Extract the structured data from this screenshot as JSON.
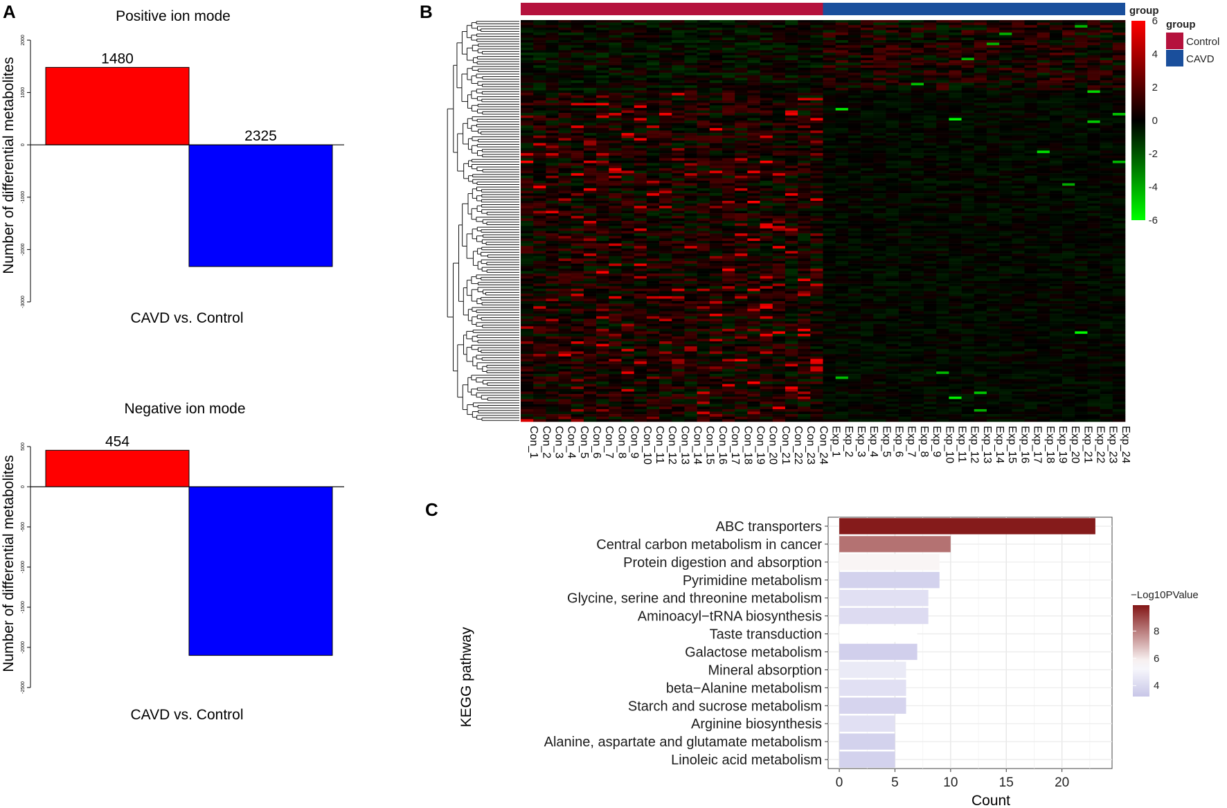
{
  "panel_labels": [
    "A",
    "B",
    "C"
  ],
  "chart_data": [
    {
      "type": "bar",
      "panel": "A",
      "title": "Positive ion mode",
      "categories": [
        "up",
        "down"
      ],
      "values": [
        1480,
        -2325
      ],
      "data_labels": [
        "1480",
        "2325"
      ],
      "colors": [
        "#ff0000",
        "#0000ff"
      ],
      "xlabel": "CAVD vs. Control",
      "ylabel": "Number of differential metabolites",
      "ylim": [
        -3000,
        2000
      ],
      "yticks": [
        -3000,
        -2000,
        -1000,
        0,
        1000,
        2000
      ]
    },
    {
      "type": "bar",
      "panel": "A",
      "title": "Negative ion mode",
      "categories": [
        "up",
        "down"
      ],
      "values": [
        454,
        -2100
      ],
      "data_labels": [
        "454",
        ""
      ],
      "colors": [
        "#ff0000",
        "#0000ff"
      ],
      "xlabel": "CAVD vs. Control",
      "ylabel": "Number of differential metabolites",
      "ylim": [
        -2500,
        500
      ],
      "yticks": [
        -2500,
        -2000,
        -1500,
        -1000,
        -500,
        0,
        500
      ]
    },
    {
      "type": "heatmap",
      "panel": "B",
      "columns": [
        "Con_1",
        "Con_2",
        "Con_3",
        "Con_4",
        "Con_5",
        "Con_6",
        "Con_7",
        "Con_8",
        "Con_9",
        "Con_10",
        "Con_11",
        "Con_12",
        "Con_13",
        "Con_14",
        "Con_15",
        "Con_16",
        "Con_17",
        "Con_18",
        "Con_19",
        "Con_20",
        "Con_21",
        "Con_22",
        "Con_23",
        "Con_24",
        "Exp_1",
        "Exp_2",
        "Exp_3",
        "Exp_4",
        "Exp_5",
        "Exp_6",
        "Exp_7",
        "Exp_8",
        "Exp_9",
        "Exp_10",
        "Exp_11",
        "Exp_12",
        "Exp_13",
        "Exp_14",
        "Exp_15",
        "Exp_16",
        "Exp_17",
        "Exp_18",
        "Exp_19",
        "Exp_20",
        "Exp_21",
        "Exp_22",
        "Exp_23",
        "Exp_24"
      ],
      "group_annotation_title": "group",
      "groups": [
        {
          "name": "Control",
          "color": "#b5123d",
          "count": 24
        },
        {
          "name": "CAVD",
          "color": "#1a4f9c",
          "count": 24
        }
      ],
      "color_scale": {
        "min": -6,
        "max": 6,
        "low": "#00ff00",
        "mid": "#000000",
        "high": "#ff0000",
        "ticks": [
          6,
          4,
          2,
          0,
          -2,
          -4,
          -6
        ]
      },
      "row_count": 160,
      "dendrogram": "rows"
    },
    {
      "type": "bar",
      "orientation": "horizontal",
      "panel": "C",
      "categories": [
        "ABC transporters",
        "Central carbon metabolism in cancer",
        "Protein digestion and absorption",
        "Pyrimidine metabolism",
        "Glycine, serine and threonine metabolism",
        "Aminoacyl−tRNA biosynthesis",
        "Taste transduction",
        "Galactose metabolism",
        "Mineral absorption",
        "beta−Alanine metabolism",
        "Starch and sucrose metabolism",
        "Arginine biosynthesis",
        "Alanine, aspartate and glutamate metabolism",
        "Linoleic acid metabolism"
      ],
      "values": [
        23,
        10,
        9,
        9,
        8,
        8,
        7,
        7,
        6,
        6,
        6,
        5,
        5,
        5
      ],
      "color_values": [
        9.8,
        8.2,
        5.8,
        3.7,
        4.3,
        4.1,
        5.6,
        3.6,
        4.7,
        4.3,
        3.8,
        4.3,
        3.7,
        3.7
      ],
      "xlabel": "Count",
      "ylabel": "KEGG pathway",
      "xlim": [
        -1,
        24.5
      ],
      "xticks": [
        0,
        5,
        10,
        15,
        20
      ],
      "legend_title": "−Log10PValue",
      "legend_ticks": [
        8,
        6,
        4
      ],
      "color_range": [
        3.2,
        9.9
      ]
    }
  ]
}
